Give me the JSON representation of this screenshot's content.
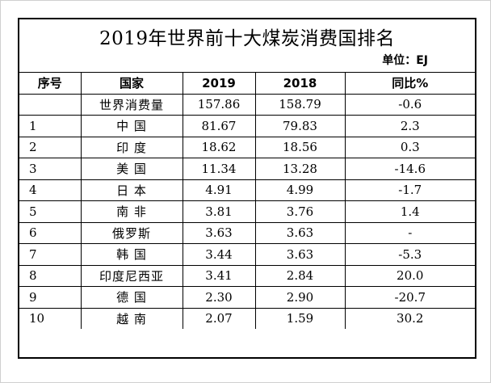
{
  "title": "2019年世界前十大煤炭消费国排名",
  "unit": "单位：EJ",
  "headers": {
    "seq": "序号",
    "country": "国家",
    "y2019": "2019",
    "y2018": "2018",
    "yoy": "同比%"
  },
  "rows": [
    {
      "seq": "",
      "country": "世界消费量",
      "v2019": "157.86",
      "v2018": "158.79",
      "yoy": "-0.6"
    },
    {
      "seq": "1",
      "country": "中 国",
      "v2019": "81.67",
      "v2018": "79.83",
      "yoy": "2.3"
    },
    {
      "seq": "2",
      "country": "印 度",
      "v2019": "18.62",
      "v2018": "18.56",
      "yoy": "0.3"
    },
    {
      "seq": "3",
      "country": "美 国",
      "v2019": "11.34",
      "v2018": "13.28",
      "yoy": "-14.6"
    },
    {
      "seq": "4",
      "country": "日 本",
      "v2019": "4.91",
      "v2018": "4.99",
      "yoy": "-1.7"
    },
    {
      "seq": "5",
      "country": "南 非",
      "v2019": "3.81",
      "v2018": "3.76",
      "yoy": "1.4"
    },
    {
      "seq": "6",
      "country": "俄罗斯",
      "v2019": "3.63",
      "v2018": "3.63",
      "yoy": "-"
    },
    {
      "seq": "7",
      "country": "韩 国",
      "v2019": "3.44",
      "v2018": "3.63",
      "yoy": "-5.3"
    },
    {
      "seq": "8",
      "country": "印度尼西亚",
      "v2019": "3.41",
      "v2018": "2.84",
      "yoy": "20.0"
    },
    {
      "seq": "9",
      "country": "德 国",
      "v2019": "2.30",
      "v2018": "2.90",
      "yoy": "-20.7"
    },
    {
      "seq": "10",
      "country": "越 南",
      "v2019": "2.07",
      "v2018": "1.59",
      "yoy": "30.2"
    }
  ]
}
